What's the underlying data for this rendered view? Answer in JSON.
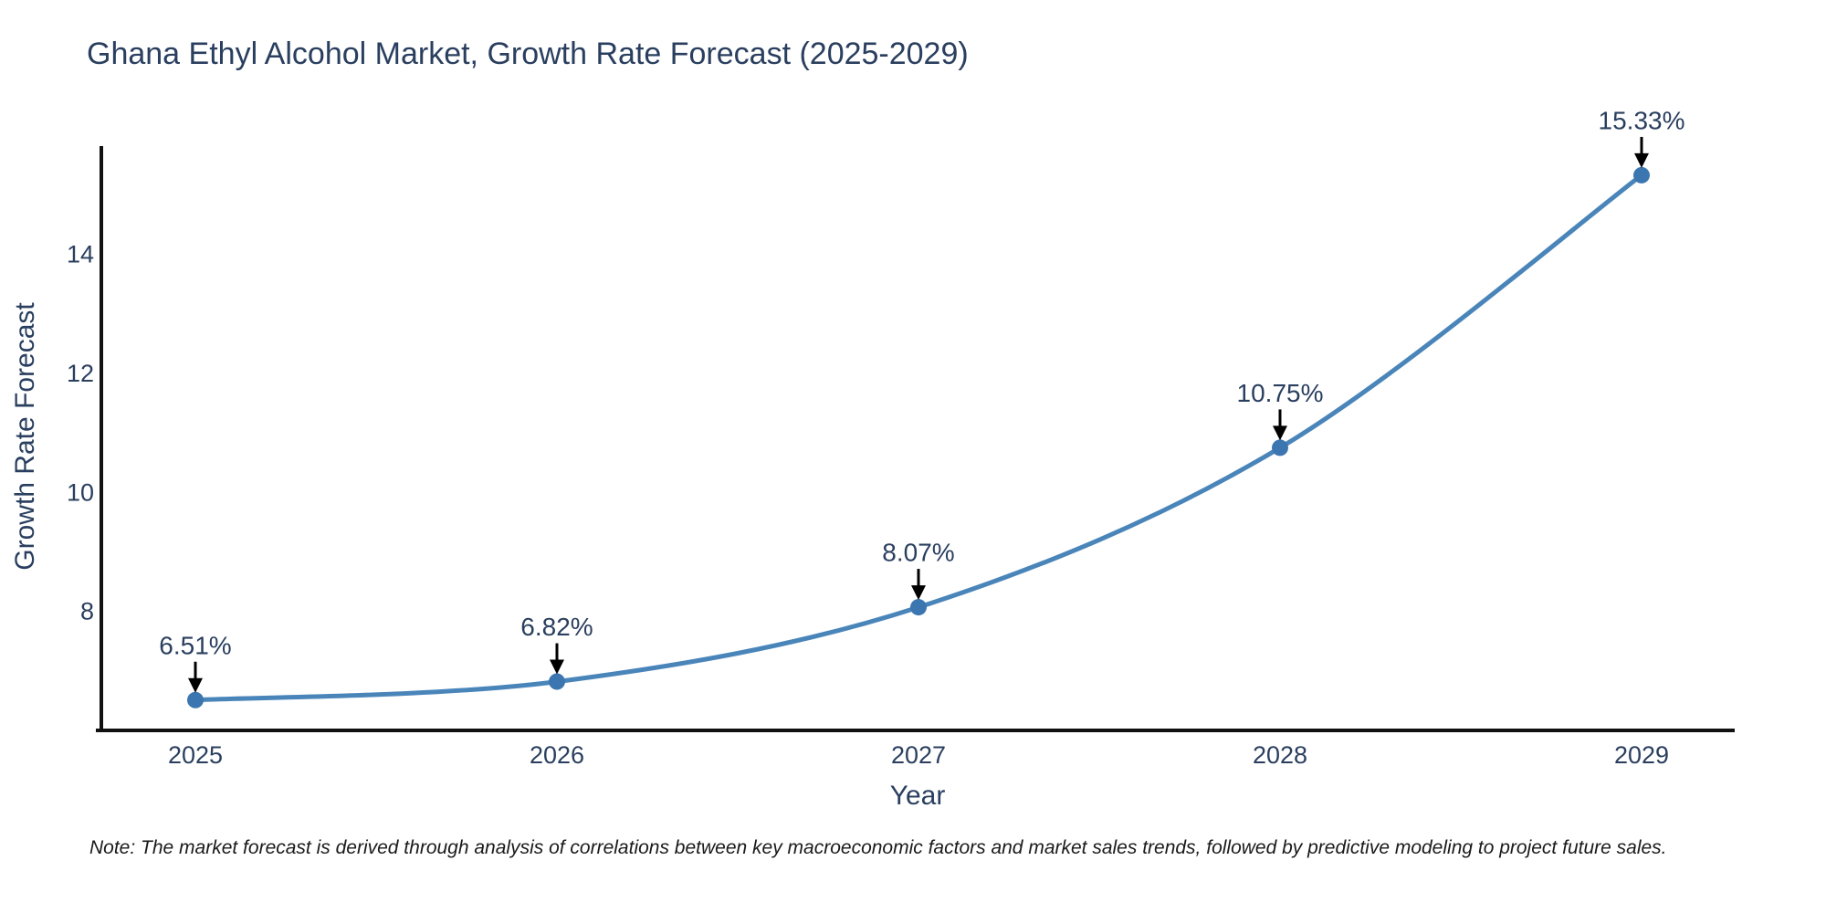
{
  "note": "Note: The market forecast is derived through analysis of correlations between key macroeconomic factors and market sales trends, followed by predictive modeling to project future sales.",
  "chart_data": {
    "type": "line",
    "title": "Ghana Ethyl Alcohol Market, Growth Rate Forecast (2025-2029)",
    "categories": [
      "2025",
      "2026",
      "2027",
      "2028",
      "2029"
    ],
    "values": [
      6.51,
      6.82,
      8.07,
      10.75,
      15.33
    ],
    "point_labels": [
      "6.51%",
      "6.82%",
      "8.07%",
      "10.75%",
      "15.33%"
    ],
    "xlabel": "Year",
    "ylabel": "Growth Rate Forecast",
    "yticks": [
      "8",
      "10",
      "12",
      "14"
    ],
    "ytick_values": [
      8,
      10,
      12,
      14
    ],
    "ylim": [
      6.0,
      15.82
    ],
    "line_shape": "spline",
    "grid": "off",
    "legend": "none",
    "colors": {
      "line": "#4a85ba",
      "marker": "#3c76b0",
      "axis": "#111111",
      "text": "#2a3f5f",
      "annotation_arrow": "#000000"
    }
  }
}
